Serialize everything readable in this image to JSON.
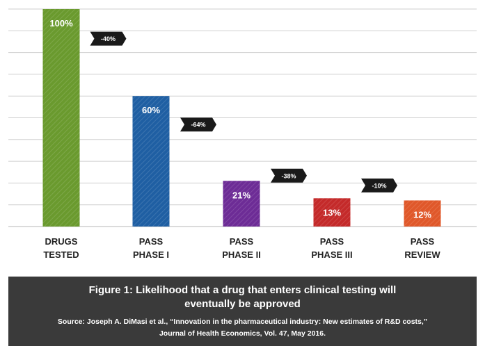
{
  "chart_data": {
    "type": "bar",
    "categories": [
      [
        "DRUGS",
        "TESTED"
      ],
      [
        "PASS",
        "PHASE I"
      ],
      [
        "PASS",
        "PHASE II"
      ],
      [
        "PASS",
        "PHASE III"
      ],
      [
        "PASS",
        "REVIEW"
      ]
    ],
    "values": [
      100,
      60,
      21,
      13,
      12
    ],
    "data_labels": [
      "100%",
      "60%",
      "21%",
      "13%",
      "12%"
    ],
    "bar_colors": [
      "#6a9a2e",
      "#1f5fa3",
      "#6d2c96",
      "#c42a2a",
      "#e0582a"
    ],
    "step_changes": [
      "-40%",
      "-64%",
      "-38%",
      "-10%"
    ],
    "ylim": [
      0,
      100
    ],
    "grid": true,
    "title": "",
    "xlabel": "",
    "ylabel": ""
  },
  "caption": {
    "title": "Figure 1: Likelihood that a drug that enters clinical testing will eventually be approved",
    "source": "Source: Joseph A. DiMasi et al., “Innovation in the pharmaceutical industry: New estimates of R&D costs,” Journal of Health Economics, Vol. 47, May 2016."
  },
  "colors": {
    "caption_background": "#3a3a3a",
    "arrow": "#1a1a1a",
    "gridline": "#cfcfcf"
  }
}
